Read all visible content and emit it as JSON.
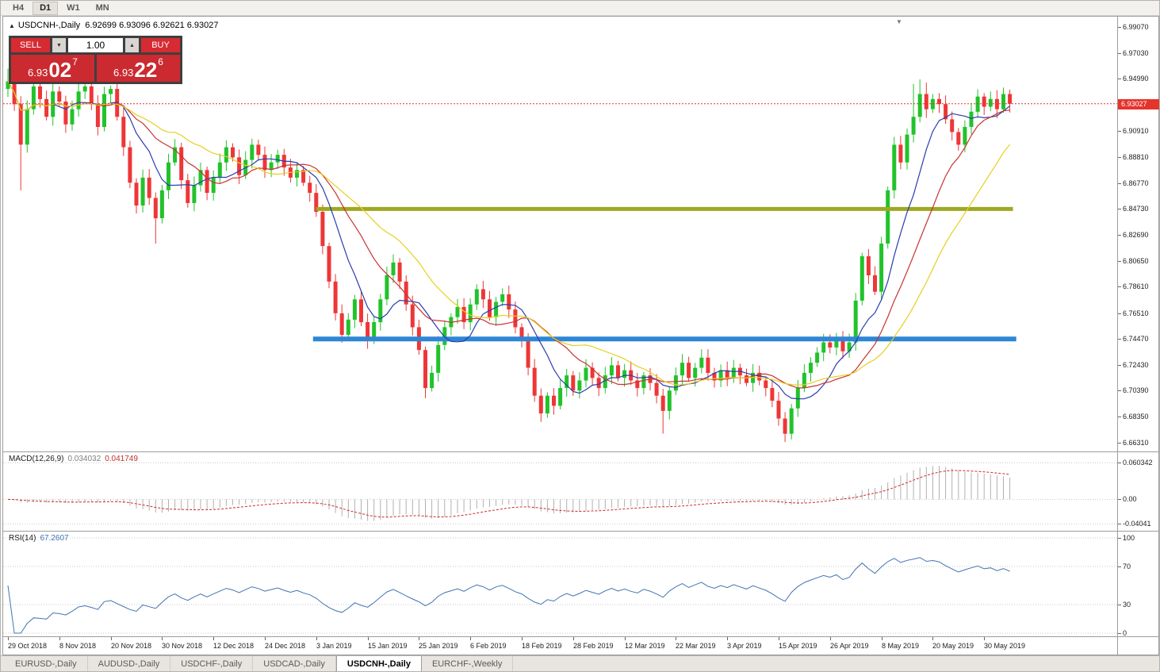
{
  "toolbar": {
    "timeframes": [
      {
        "label": "H4",
        "active": false
      },
      {
        "label": "D1",
        "active": true
      },
      {
        "label": "W1",
        "active": false
      },
      {
        "label": "MN",
        "active": false
      }
    ]
  },
  "chart": {
    "symbol_title": "USDCNH-,Daily",
    "ohlc_text": "6.92699 6.93096 6.92621 6.93027",
    "collapse_icon": "▲",
    "shift_marker_icon": "▼",
    "current_price_label": "6.93027"
  },
  "trade_panel": {
    "sell_label": "SELL",
    "buy_label": "BUY",
    "volume": "1.00",
    "decrease_icon": "▼",
    "increase_icon": "▲",
    "sell_price": {
      "prefix": "6.93",
      "big": "02",
      "sup": "7"
    },
    "buy_price": {
      "prefix": "6.93",
      "big": "22",
      "sup": "6"
    }
  },
  "macd_panel": {
    "label": "MACD(12,26,9)",
    "value_main": "0.034032",
    "value_signal": "0.041749"
  },
  "rsi_panel": {
    "label": "RSI(14)",
    "value": "67.2607"
  },
  "tabs": [
    {
      "label": "EURUSD-,Daily",
      "active": false
    },
    {
      "label": "AUDUSD-,Daily",
      "active": false
    },
    {
      "label": "USDCHF-,Daily",
      "active": false
    },
    {
      "label": "USDCAD-,Daily",
      "active": false
    },
    {
      "label": "USDCNH-,Daily",
      "active": true
    },
    {
      "label": "EURCHF-,Weekly",
      "active": false
    }
  ],
  "chart_data": {
    "type": "candlestick",
    "symbol": "USDCNH",
    "timeframe": "Daily",
    "current_bar": {
      "open": 6.92699,
      "high": 6.93096,
      "low": 6.92621,
      "close": 6.93027
    },
    "ylim": [
      6.656,
      6.999
    ],
    "first_open": 6.942,
    "closes": [
      6.948,
      6.93,
      6.898,
      6.926,
      6.944,
      6.934,
      6.92,
      6.94,
      6.932,
      6.914,
      6.926,
      6.94,
      6.944,
      6.93,
      6.912,
      6.938,
      6.942,
      6.92,
      6.896,
      6.868,
      6.85,
      6.872,
      6.856,
      6.84,
      6.862,
      6.884,
      6.896,
      6.87,
      6.852,
      6.866,
      6.878,
      6.86,
      6.872,
      6.884,
      6.896,
      6.888,
      6.874,
      6.886,
      6.898,
      6.89,
      6.878,
      6.884,
      6.89,
      6.88,
      6.872,
      6.878,
      6.868,
      6.86,
      6.845,
      6.818,
      6.79,
      6.765,
      6.748,
      6.76,
      6.776,
      6.758,
      6.744,
      6.758,
      6.776,
      6.795,
      6.805,
      6.79,
      6.772,
      6.754,
      6.736,
      6.706,
      6.718,
      6.74,
      6.754,
      6.762,
      6.77,
      6.758,
      6.772,
      6.784,
      6.776,
      6.762,
      6.774,
      6.78,
      6.768,
      6.754,
      6.744,
      6.722,
      6.7,
      6.686,
      6.7,
      6.692,
      6.706,
      6.716,
      6.704,
      6.712,
      6.722,
      6.714,
      6.706,
      6.716,
      6.724,
      6.714,
      6.72,
      6.712,
      6.706,
      6.716,
      6.71,
      6.7,
      6.688,
      6.704,
      6.716,
      6.726,
      6.714,
      6.722,
      6.73,
      6.718,
      6.712,
      6.72,
      6.714,
      6.722,
      6.716,
      6.71,
      6.718,
      6.712,
      6.706,
      6.696,
      6.682,
      6.67,
      6.69,
      6.706,
      6.718,
      6.726,
      6.734,
      6.742,
      6.738,
      6.746,
      6.735,
      6.742,
      6.775,
      6.81,
      6.795,
      6.782,
      6.82,
      6.862,
      6.898,
      6.884,
      6.906,
      6.92,
      6.938,
      6.926,
      6.934,
      6.93,
      6.918,
      6.908,
      6.898,
      6.912,
      6.924,
      6.936,
      6.928,
      6.934,
      6.926,
      6.938,
      6.93027
    ],
    "high_overrides": {
      "0": 6.958,
      "141": 6.946,
      "142": 6.9495,
      "143": 6.947
    },
    "low_overrides": {
      "2": 6.862,
      "23": 6.82,
      "65": 6.698,
      "102": 6.67,
      "121": 6.6635
    },
    "moving_averages": [
      {
        "period": 8,
        "color": "#2a3dae"
      },
      {
        "period": 15,
        "color": "#c93232"
      },
      {
        "period": 24,
        "color": "#e8cf1e"
      }
    ],
    "bull_color": "#21c32b",
    "bear_color": "#ee3637",
    "hlines": [
      {
        "price": 6.8473,
        "color": "#a0a821",
        "width": 5,
        "from_bar": 48,
        "to_bar": 156.5
      },
      {
        "price": 6.7447,
        "color": "#2e86d6",
        "width": 6,
        "from_bar": 47.5,
        "to_bar": 157
      }
    ],
    "current_price": 6.93027,
    "current_price_color": "#e5342c",
    "y_ticks": [
      "6.99070",
      "6.97030",
      "6.94990",
      "6.90910",
      "6.88810",
      "6.86770",
      "6.84730",
      "6.82690",
      "6.80650",
      "6.78610",
      "6.76510",
      "6.74470",
      "6.72430",
      "6.70390",
      "6.68350",
      "6.66310"
    ],
    "x_tick_step_bars": 8,
    "x_tick_labels": [
      "29 Oct 2018",
      "8 Nov 2018",
      "20 Nov 2018",
      "30 Nov 2018",
      "12 Dec 2018",
      "24 Dec 2018",
      "3 Jan 2019",
      "15 Jan 2019",
      "25 Jan 2019",
      "6 Feb 2019",
      "18 Feb 2019",
      "28 Feb 2019",
      "12 Mar 2019",
      "22 Mar 2019",
      "3 Apr 2019",
      "15 Apr 2019",
      "26 Apr 2019",
      "8 May 2019",
      "20 May 2019",
      "30 May 2019"
    ],
    "macd": {
      "fast": 12,
      "slow": 26,
      "signal": 9,
      "ylim": [
        -0.052,
        0.078
      ],
      "grid_values": [
        0.060342,
        0.0,
        -0.04041
      ],
      "grid_labels": [
        "0.060342",
        "0.00",
        "-0.04041"
      ],
      "histogram_color": "#b0b0b0",
      "signal_color": "#cc2a2a"
    },
    "rsi": {
      "period": 14,
      "levels": [
        100,
        70,
        30,
        0
      ],
      "level_labels": [
        "100",
        "70",
        "30",
        "0"
      ],
      "line_color": "#4074b0"
    }
  }
}
